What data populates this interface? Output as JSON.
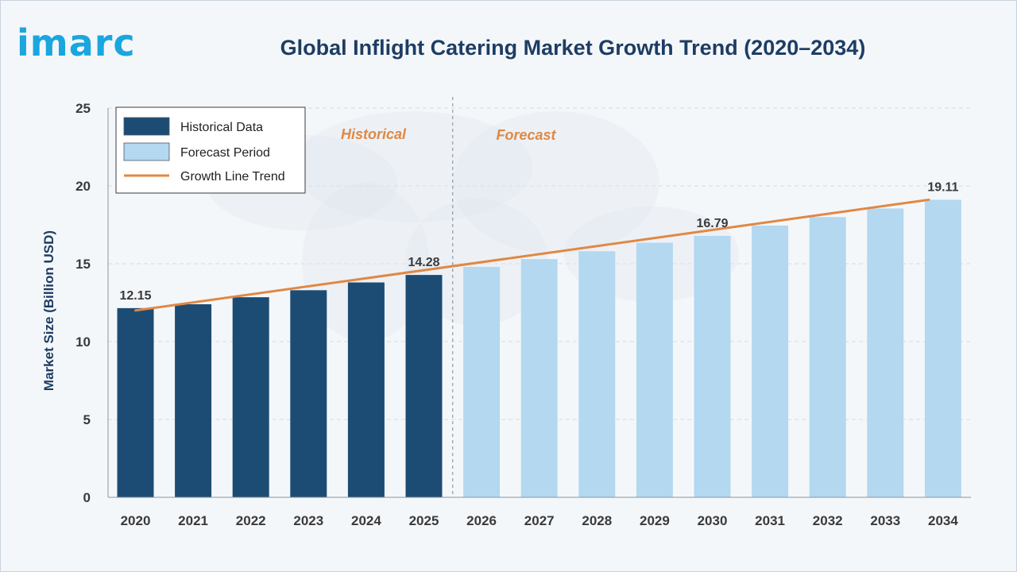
{
  "brand": {
    "logo_text": "imarc"
  },
  "title": "Global Inflight Catering Market Growth Trend (2020–2034)",
  "colors": {
    "historical": "#1c4c74",
    "forecast": "#b3d8f0",
    "trend": "#e08844",
    "axis_text": "#3a3a3a",
    "title": "#1d3d63",
    "logo": "#1aa6df"
  },
  "chart_data": {
    "type": "bar",
    "title": "Global Inflight Catering Market Growth Trend (2020–2034)",
    "xlabel": "",
    "ylabel": "Market Size (Billion USD)",
    "ylim": [
      0,
      25
    ],
    "yticks": [
      0,
      5,
      10,
      15,
      20,
      25
    ],
    "grid": true,
    "legend_position": "top-left",
    "categories": [
      "2020",
      "2021",
      "2022",
      "2023",
      "2024",
      "2025",
      "2026",
      "2027",
      "2028",
      "2029",
      "2030",
      "2031",
      "2032",
      "2033",
      "2034"
    ],
    "series": [
      {
        "name": "Historical Data",
        "values": [
          12.15,
          12.4,
          12.85,
          13.3,
          13.8,
          14.28,
          null,
          null,
          null,
          null,
          null,
          null,
          null,
          null,
          null
        ]
      },
      {
        "name": "Forecast Period",
        "values": [
          null,
          null,
          null,
          null,
          null,
          null,
          14.8,
          15.3,
          15.8,
          16.35,
          16.79,
          17.45,
          18.0,
          18.55,
          19.11
        ]
      }
    ],
    "trend": {
      "name": "Growth Line Trend",
      "start": 12.0,
      "end": 19.11
    },
    "data_labels": [
      {
        "category": "2020",
        "text": "12.15"
      },
      {
        "category": "2025",
        "text": "14.28"
      },
      {
        "category": "2030",
        "text": "16.79"
      },
      {
        "category": "2034",
        "text": "19.11"
      }
    ],
    "annotations": {
      "historical": "Historical",
      "forecast": "Forecast"
    }
  }
}
